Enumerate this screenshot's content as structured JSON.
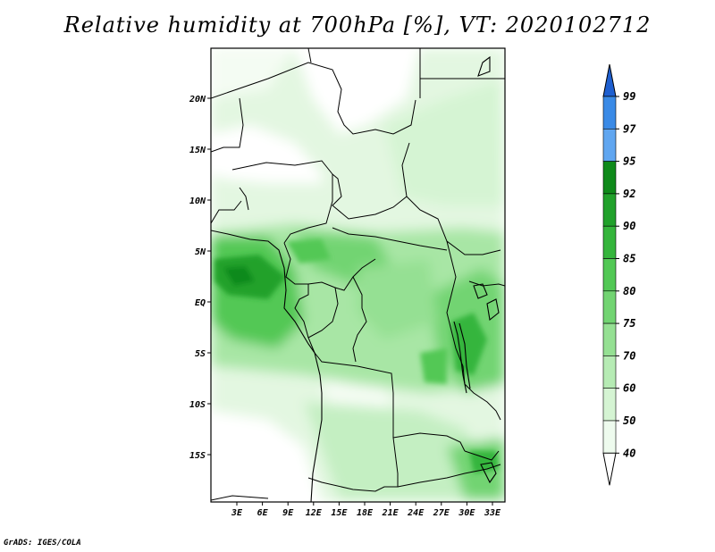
{
  "title": "Relative humidity at 700hPa [%], VT: 2020102712",
  "footer": "GrADS: IGES/COLA",
  "map": {
    "lon_labels": [
      "3E",
      "6E",
      "9E",
      "12E",
      "15E",
      "18E",
      "21E",
      "24E",
      "27E",
      "30E",
      "33E"
    ],
    "lat_labels": [
      "20N",
      "15N",
      "10N",
      "5N",
      "EQ",
      "5S",
      "10S",
      "15S"
    ]
  },
  "colorbar": {
    "levels": [
      "99",
      "97",
      "95",
      "92",
      "90",
      "85",
      "80",
      "75",
      "70",
      "60",
      "50",
      "40"
    ],
    "colors": [
      "#1e5fd0",
      "#3a8ae6",
      "#60a6f0",
      "#0f8a1a",
      "#21a12b",
      "#35b53c",
      "#52c855",
      "#72d472",
      "#95e093",
      "#b6ebb4",
      "#d5f4d3",
      "#eefbee"
    ]
  }
}
